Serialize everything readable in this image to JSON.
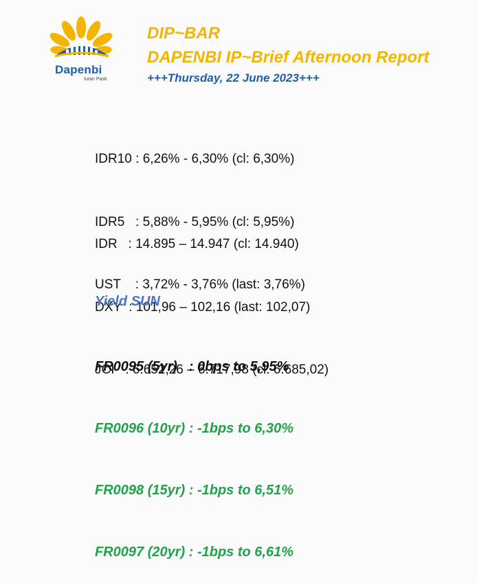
{
  "logo": {
    "name": "Dapenbi",
    "tagline": "Iuran Pasti",
    "colors": {
      "petal": "#f5b400",
      "bars": "#1f5ea8",
      "text": "#1f5ea8"
    }
  },
  "header": {
    "title": "DIP~BAR",
    "subtitle": "DAPENBI IP~Brief Afternoon Report",
    "date": "+++Thursday, 22 June 2023+++"
  },
  "bonds": [
    "IDR10 : 6,26% - 6,30% (cl: 6,30%)",
    "IDR5   : 5,88% - 5,95% (cl: 5,95%)",
    "UST    : 3,72% - 3,76% (last: 3,76%)"
  ],
  "markets": [
    "IDR   : 14.895 – 14.947 (cl: 14.940)",
    "DXY  : 101,96 – 102,16 (last: 102,07)",
    "JCI   : 6.652,26 – 6.717,98 (cl: 6.685,02)"
  ],
  "yield_sun": {
    "title": "Yield SUN",
    "items": [
      {
        "text": "FR0095 (5yr)   : 0bps to 5,95%",
        "color": "black"
      },
      {
        "text": "FR0096 (10yr) : -1bps to 6,30%",
        "color": "green"
      },
      {
        "text": "FR0098 (15yr) : -1bps to 6,51%",
        "color": "green"
      },
      {
        "text": "FR0097 (20yr) : -1bps to 6,61%",
        "color": "green"
      }
    ]
  },
  "colors": {
    "title": "#f5b400",
    "date": "#1f5ea8",
    "yield_title": "#4a75c4",
    "unchanged": "#111111",
    "down": "#1fa34a"
  }
}
